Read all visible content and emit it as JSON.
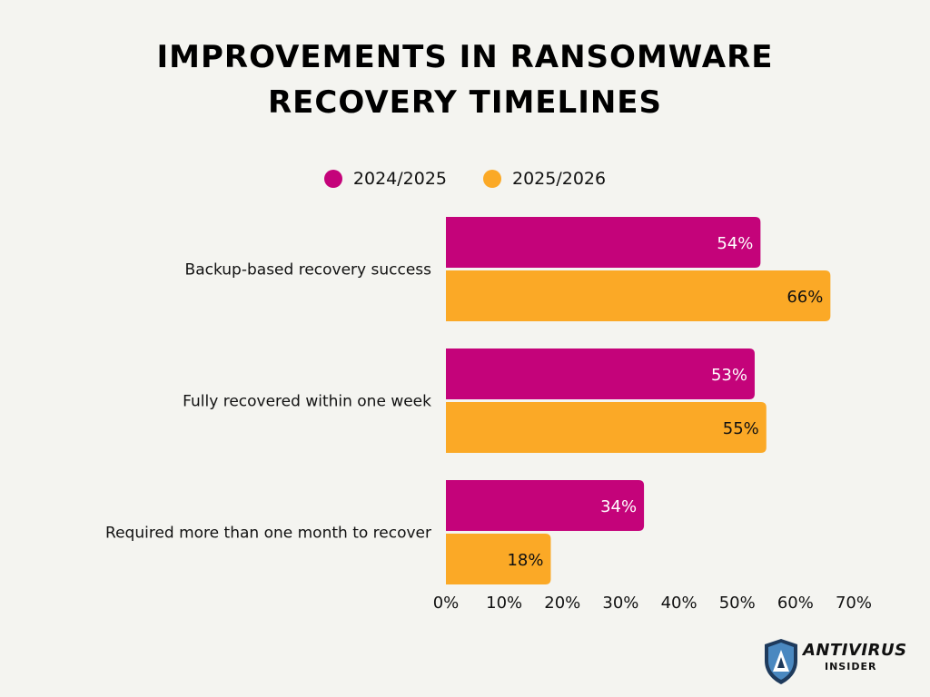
{
  "colors": {
    "series_2024_2025": "#c4037a",
    "series_2025_2026": "#fba926",
    "background": "#f4f4f0"
  },
  "logo": {
    "line1": "ANTIVIRUS",
    "line2": "INSIDER",
    "icon": "shield-icon"
  },
  "chart_data": {
    "type": "bar",
    "orientation": "horizontal",
    "title": "Improvements in Ransomware Recovery Timelines",
    "title_lines": [
      "Improvements in Ransomware",
      "Recovery Timelines"
    ],
    "categories": [
      "Backup-based recovery success",
      "Fully recovered within one week",
      "Required more than one month to recover"
    ],
    "series": [
      {
        "name": "2024/2025",
        "values": [
          54,
          53,
          34
        ],
        "labels": [
          "54%",
          "53%",
          "34%"
        ],
        "label_color": "#ffffff"
      },
      {
        "name": "2025/2026",
        "values": [
          66,
          55,
          18
        ],
        "labels": [
          "66%",
          "55%",
          "18%"
        ],
        "label_color": "#111111"
      }
    ],
    "xlim": [
      0,
      70
    ],
    "x_ticks": [
      "0%",
      "10%",
      "20%",
      "30%",
      "40%",
      "50%",
      "60%",
      "70%"
    ],
    "grid": false,
    "legend_position": "top-center"
  }
}
